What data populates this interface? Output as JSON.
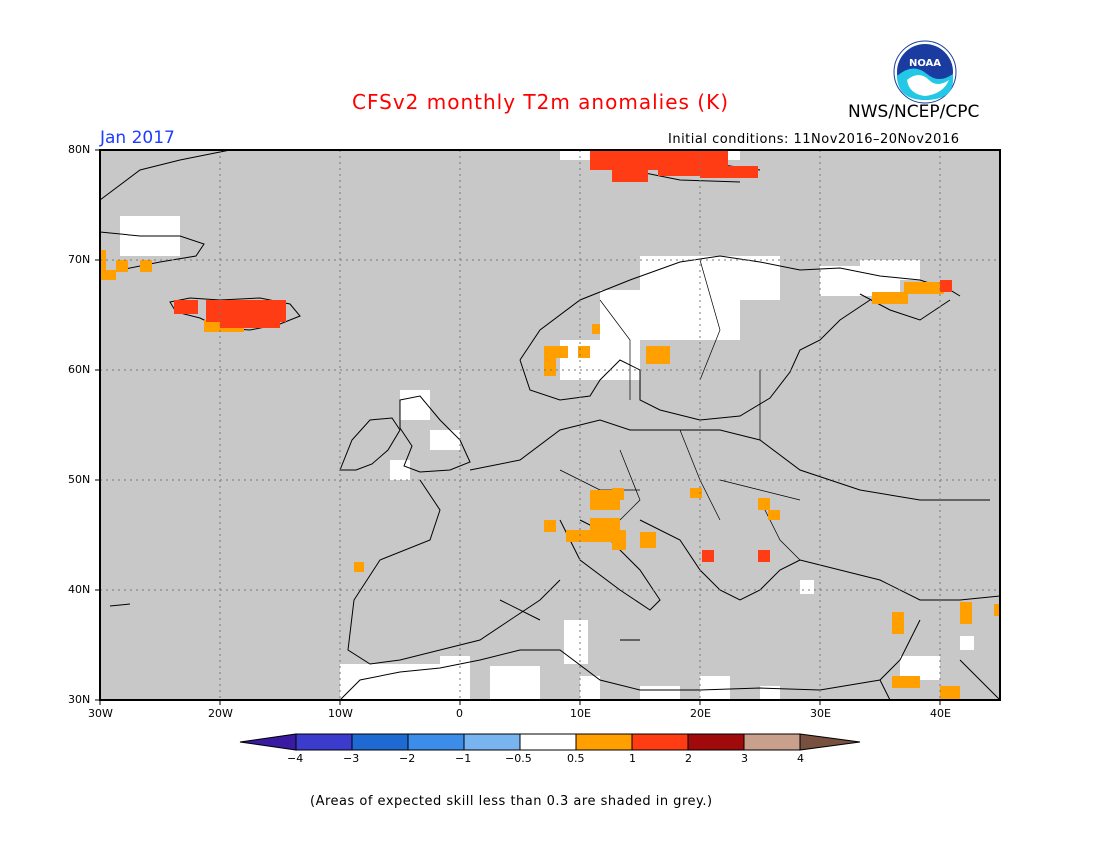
{
  "title": "CFSv2 monthly T2m anomalies (K)",
  "agency": "NWS/NCEP/CPC",
  "logo_text": "NOAA",
  "valid_month": "Jan 2017",
  "initial_conditions": "Initial conditions: 11Nov2016–20Nov2016",
  "lat_labels": [
    "80N",
    "70N",
    "60N",
    "50N",
    "40N",
    "30N"
  ],
  "lon_labels": [
    "30W",
    "20W",
    "10W",
    "0",
    "10E",
    "20E",
    "30E",
    "40E"
  ],
  "colorbar": {
    "ticks": [
      "−4",
      "−3",
      "−2",
      "−1",
      "−0.5",
      "0.5",
      "1",
      "2",
      "3",
      "4"
    ],
    "colors": [
      "#3a1aa0",
      "#3c3ccc",
      "#1e6ad2",
      "#3c8cea",
      "#78b4f0",
      "#ffffff",
      "#ffa000",
      "#ff3c14",
      "#a00a0a",
      "#c8a08c",
      "#785040"
    ]
  },
  "note": "(Areas of expected skill less than 0.3 are shaded in grey.)",
  "colors": {
    "title": "#ff0000",
    "date": "#1e3cff",
    "skill_grey": "#c8c8c8",
    "anom_0_5_1": "#ffa000",
    "anom_1_2": "#ff3c14"
  }
}
